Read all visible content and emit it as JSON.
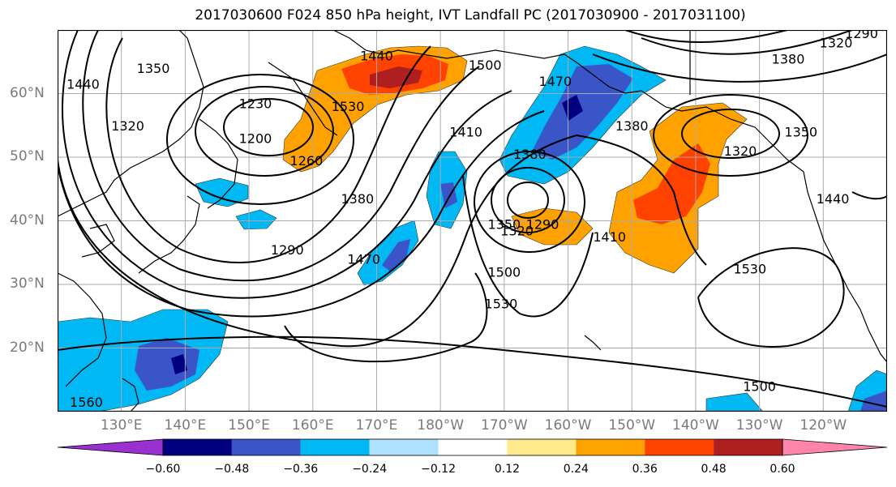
{
  "title": "2017030600 F024 850 hPa height, IVT Landfall PC (2017030900 - 2017031100)",
  "map": {
    "extent": {
      "lon_min": 120,
      "lon_max": 250,
      "lat_min": 10,
      "lat_max": 70
    },
    "lat_ticks": [
      {
        "lat": 60,
        "label": "60°N"
      },
      {
        "lat": 50,
        "label": "50°N"
      },
      {
        "lat": 40,
        "label": "40°N"
      },
      {
        "lat": 30,
        "label": "30°N"
      },
      {
        "lat": 20,
        "label": "20°N"
      }
    ],
    "lon_ticks": [
      {
        "lon": 130,
        "label": "130°E"
      },
      {
        "lon": 140,
        "label": "140°E"
      },
      {
        "lon": 150,
        "label": "150°E"
      },
      {
        "lon": 160,
        "label": "160°E"
      },
      {
        "lon": 170,
        "label": "170°E"
      },
      {
        "lon": 180,
        "label": "180°W"
      },
      {
        "lon": 190,
        "label": "170°W"
      },
      {
        "lon": 200,
        "label": "160°W"
      },
      {
        "lon": 210,
        "label": "150°W"
      },
      {
        "lon": 220,
        "label": "140°W"
      },
      {
        "lon": 230,
        "label": "130°W"
      },
      {
        "lon": 240,
        "label": "120°W"
      }
    ],
    "contour_labels": [
      {
        "lon": 124,
        "lat": 61.5,
        "text": "1440"
      },
      {
        "lon": 135,
        "lat": 64,
        "text": "1350"
      },
      {
        "lon": 131,
        "lat": 55,
        "text": "1320"
      },
      {
        "lon": 151,
        "lat": 58.5,
        "text": "1230"
      },
      {
        "lon": 151,
        "lat": 53,
        "text": "1200"
      },
      {
        "lon": 159,
        "lat": 49.5,
        "text": "1260"
      },
      {
        "lon": 165.5,
        "lat": 58,
        "text": "1530"
      },
      {
        "lon": 170,
        "lat": 66,
        "text": "1440"
      },
      {
        "lon": 187,
        "lat": 64.5,
        "text": "1500"
      },
      {
        "lon": 198,
        "lat": 62,
        "text": "1470"
      },
      {
        "lon": 184,
        "lat": 54,
        "text": "1410"
      },
      {
        "lon": 194,
        "lat": 50.5,
        "text": "1380"
      },
      {
        "lon": 167,
        "lat": 43.5,
        "text": "1380"
      },
      {
        "lon": 156,
        "lat": 35.5,
        "text": "1290"
      },
      {
        "lon": 168,
        "lat": 34,
        "text": "1470"
      },
      {
        "lon": 190,
        "lat": 39.5,
        "text": "1350"
      },
      {
        "lon": 196,
        "lat": 39.5,
        "text": "1290"
      },
      {
        "lon": 192,
        "lat": 38.5,
        "text": "1320"
      },
      {
        "lon": 190,
        "lat": 32,
        "text": "1500"
      },
      {
        "lon": 189.5,
        "lat": 27,
        "text": "1530"
      },
      {
        "lon": 206.5,
        "lat": 37.5,
        "text": "1410"
      },
      {
        "lon": 210,
        "lat": 55,
        "text": "1380"
      },
      {
        "lon": 227,
        "lat": 51,
        "text": "1320"
      },
      {
        "lon": 236.5,
        "lat": 54,
        "text": "1350"
      },
      {
        "lon": 242,
        "lat": 68,
        "text": "1320"
      },
      {
        "lon": 246,
        "lat": 69.5,
        "text": "1290"
      },
      {
        "lon": 234.5,
        "lat": 65.5,
        "text": "1380"
      },
      {
        "lon": 241.5,
        "lat": 43.5,
        "text": "1440"
      },
      {
        "lon": 228.5,
        "lat": 32.5,
        "text": "1530"
      },
      {
        "lon": 230,
        "lat": 14,
        "text": "1500"
      },
      {
        "lon": 124.5,
        "lat": 11.5,
        "text": "1560"
      }
    ]
  },
  "colorbar": {
    "colors": [
      "#9b30d0",
      "#000080",
      "#3a55c8",
      "#00b8f4",
      "#aee0ff",
      "#ffffff",
      "#ffe98a",
      "#ffa200",
      "#ff4200",
      "#b01f1f",
      "#ff84aa"
    ],
    "tick_labels": [
      "−0.60",
      "−0.48",
      "−0.36",
      "−0.24",
      "−0.12",
      "0.12",
      "0.24",
      "0.36",
      "0.48",
      "0.60"
    ]
  }
}
